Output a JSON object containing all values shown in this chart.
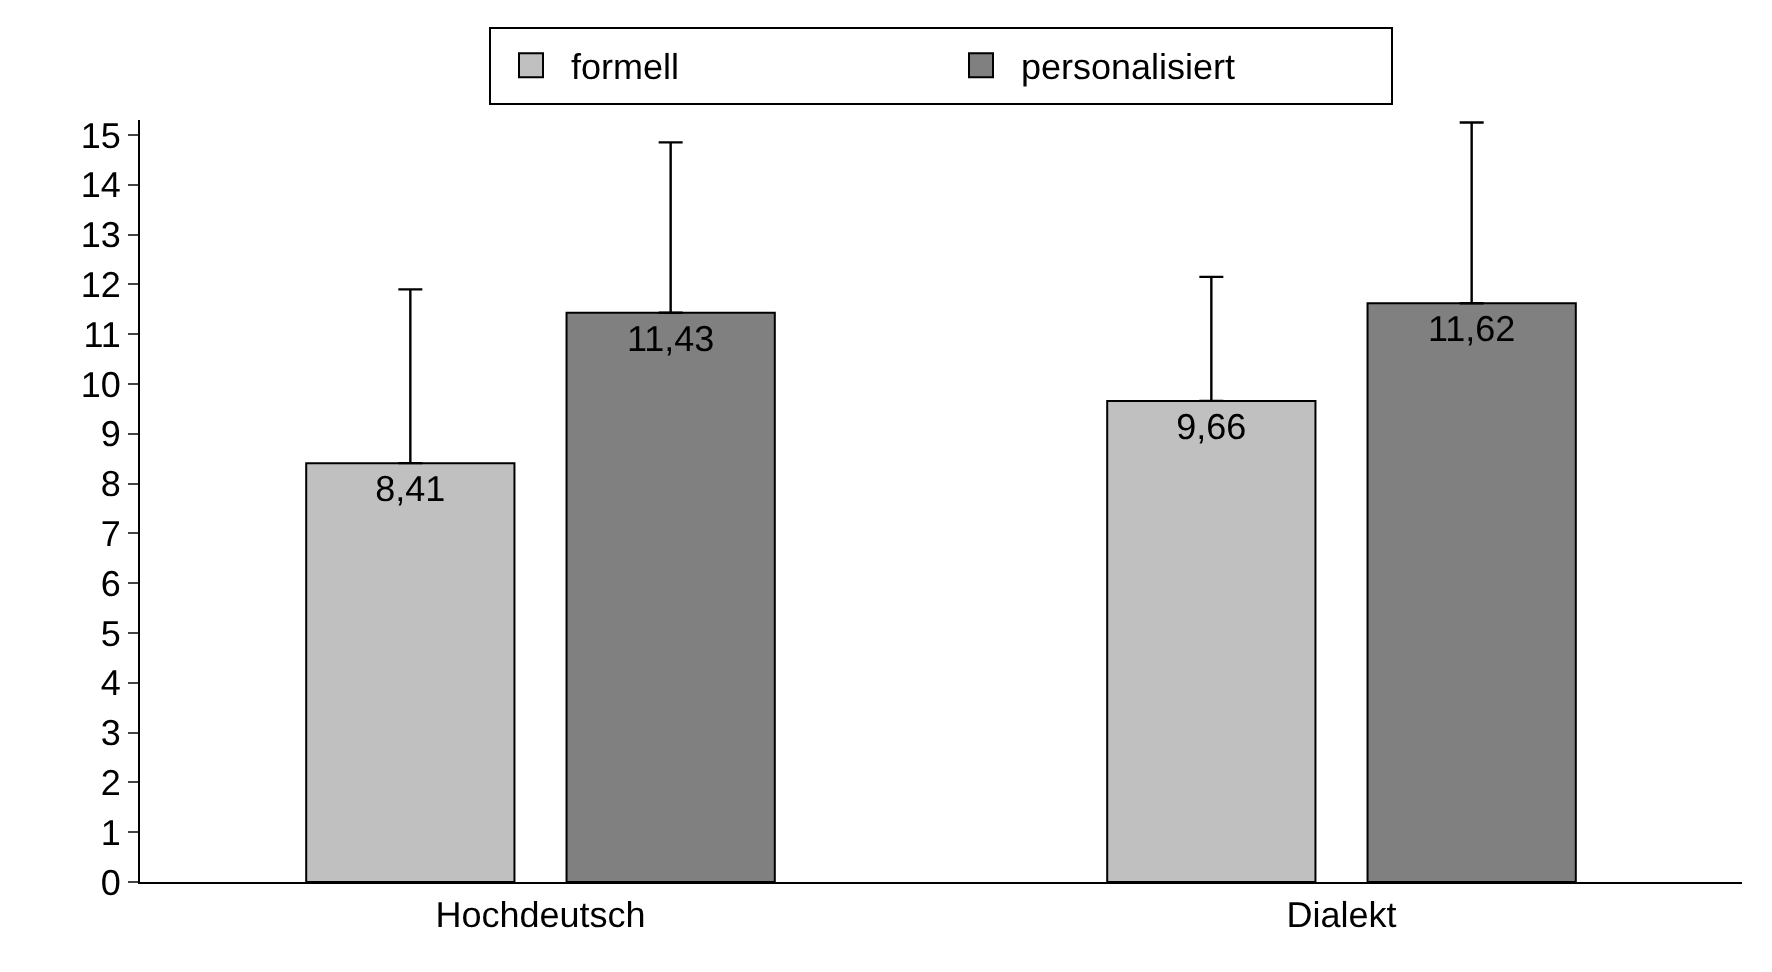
{
  "chart_data": {
    "type": "bar",
    "categories": [
      "Hochdeutsch",
      "Dialekt"
    ],
    "series": [
      {
        "name": "formell",
        "color": "#c0c0c0",
        "values": [
          8.41,
          9.66
        ],
        "value_labels": [
          "8,41",
          "9,66"
        ],
        "errors": [
          [
            8.41,
            11.9
          ],
          [
            9.66,
            12.15
          ]
        ]
      },
      {
        "name": "personalisiert",
        "color": "#808080",
        "values": [
          11.43,
          11.62
        ],
        "value_labels": [
          "11,43",
          "11,62"
        ],
        "errors": [
          [
            11.43,
            14.85
          ],
          [
            11.62,
            15.25
          ]
        ]
      }
    ],
    "ylim": [
      0,
      15.3
    ],
    "yticks": [
      0,
      1,
      2,
      3,
      4,
      5,
      6,
      7,
      8,
      9,
      10,
      11,
      12,
      13,
      14,
      15
    ],
    "grid": false,
    "legend": "top"
  }
}
